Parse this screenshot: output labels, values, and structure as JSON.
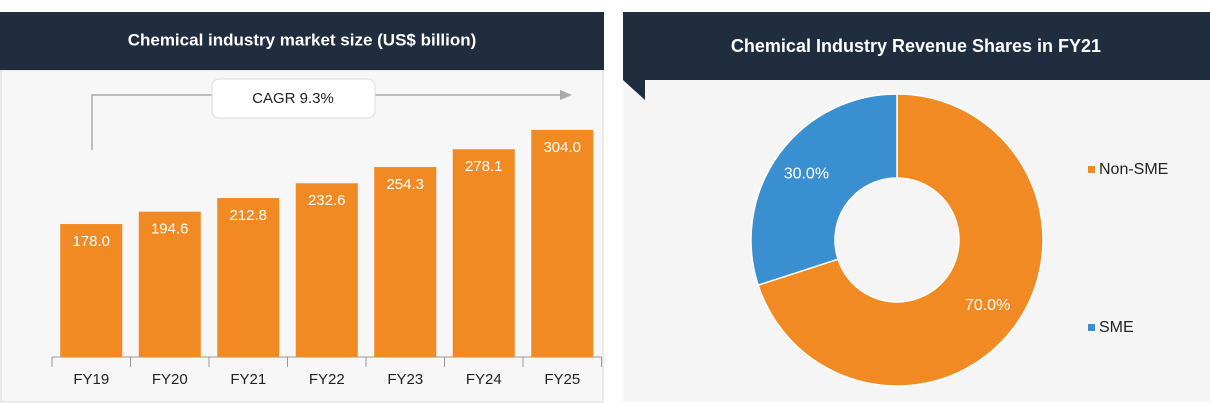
{
  "chart_data": [
    {
      "type": "bar",
      "title": "Chemical industry market size (US$ billion)",
      "categories": [
        "FY19",
        "FY20",
        "FY21",
        "FY22",
        "FY23",
        "FY24",
        "FY25"
      ],
      "values": [
        178.0,
        194.6,
        212.8,
        232.6,
        254.3,
        278.1,
        304.0
      ],
      "value_labels": [
        "178.0",
        "194.6",
        "212.8",
        "232.6",
        "254.3",
        "278.1",
        "304.0"
      ],
      "color": "#f28a24",
      "annotation": "CAGR 9.3%"
    },
    {
      "type": "pie",
      "title": "Chemical Industry Revenue Shares in FY21",
      "categories": [
        "Non-SME",
        "SME"
      ],
      "values": [
        70.0,
        30.0
      ],
      "value_labels": [
        "70.0%",
        "30.0%"
      ],
      "colors": [
        "#f28a24",
        "#3a8fd0"
      ],
      "legend": "right"
    }
  ]
}
